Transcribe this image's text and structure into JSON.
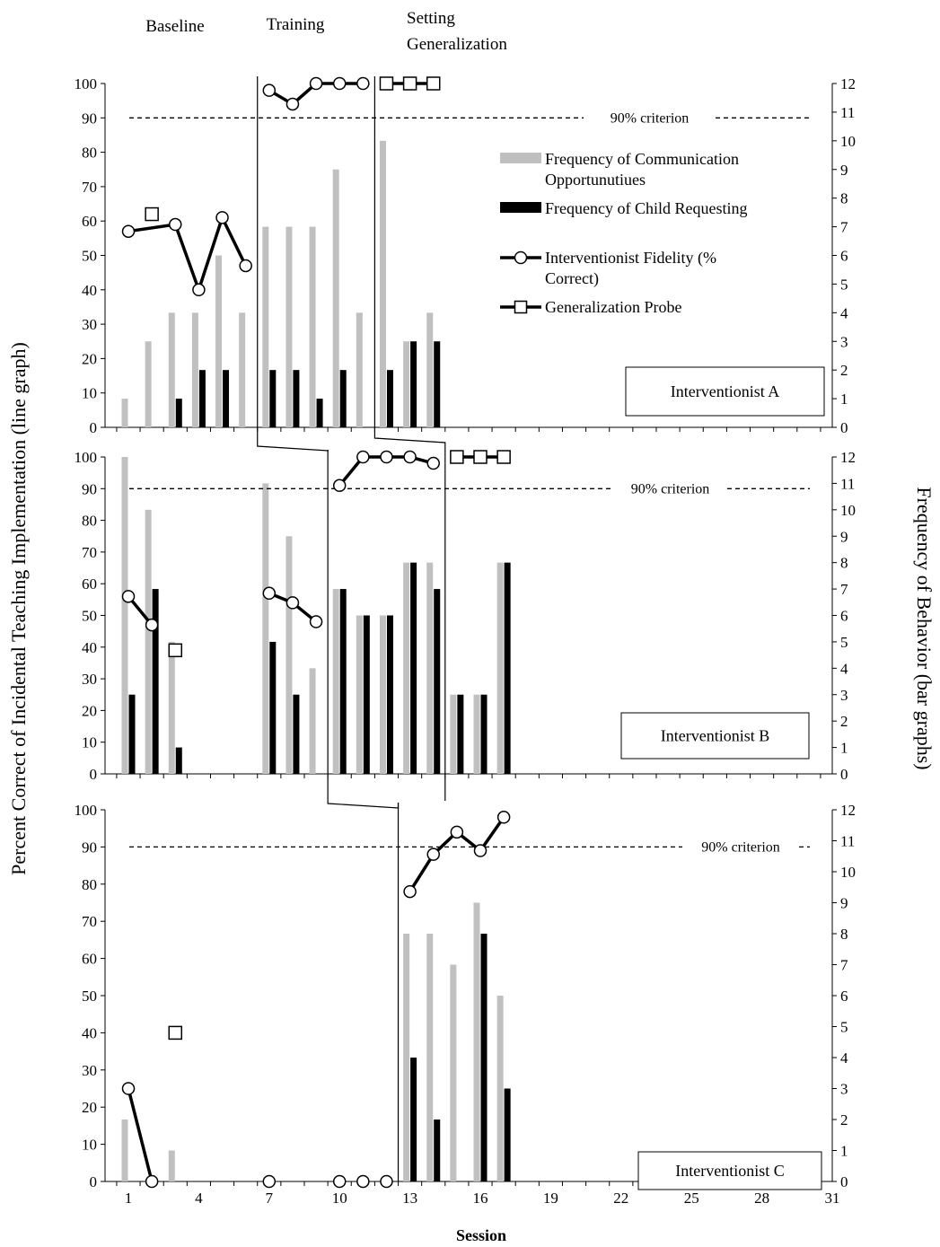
{
  "chart_data": {
    "type": "bar",
    "phase_labels": [
      "Baseline",
      "Training",
      "Setting",
      "Generalization"
    ],
    "ylabel_left": "Percent Correct of Incidental Teaching  Implementation  (line graph)",
    "ylabel_right": "Frequency  of Behavior  (bar graphs)",
    "xlabel": "Session",
    "x_ticks": [
      "1",
      "4",
      "7",
      "10",
      "13",
      "16",
      "19",
      "22",
      "25",
      "28",
      "31"
    ],
    "y_left_ticks": [
      "0",
      "10",
      "20",
      "30",
      "40",
      "50",
      "60",
      "70",
      "80",
      "90",
      "100"
    ],
    "y_right_ticks": [
      "0",
      "1",
      "2",
      "3",
      "4",
      "5",
      "6",
      "7",
      "8",
      "9",
      "10",
      "11",
      "12"
    ],
    "ylim_left": [
      0,
      100
    ],
    "ylim_right": [
      0,
      12
    ],
    "xlim": [
      1,
      31
    ],
    "criterion_value": 90,
    "criterion_label": "90% criterion",
    "legend": [
      {
        "label": "Frequency of Communication",
        "label2": "Opportunutiues",
        "marker": "gray-bar"
      },
      {
        "label": "Frequency of  Child Requesting",
        "label2": "",
        "marker": "black-bar"
      },
      {
        "label": "Interventionist Fidelity (%",
        "label2": "Correct)",
        "marker": "circle-line"
      },
      {
        "label": "Generalization Probe",
        "label2": "",
        "marker": "square-line"
      }
    ],
    "colors": {
      "opportunities": "#c0c0c0",
      "requesting": "#000000",
      "line": "#000000"
    },
    "panels": [
      {
        "name": "Interventionist A",
        "opportunities": [
          [
            1,
            1
          ],
          [
            2,
            3
          ],
          [
            3,
            4
          ],
          [
            4,
            4
          ],
          [
            5,
            6
          ],
          [
            6,
            4
          ],
          [
            7,
            7
          ],
          [
            8,
            7
          ],
          [
            9,
            7
          ],
          [
            10,
            9
          ],
          [
            11,
            4
          ],
          [
            12,
            10
          ],
          [
            13,
            3
          ],
          [
            14,
            4
          ]
        ],
        "requesting": [
          [
            3,
            1
          ],
          [
            4,
            2
          ],
          [
            5,
            2
          ],
          [
            7,
            2
          ],
          [
            8,
            2
          ],
          [
            9,
            1
          ],
          [
            10,
            2
          ],
          [
            12,
            2
          ],
          [
            13,
            3
          ],
          [
            14,
            3
          ]
        ],
        "fidelity_segments": [
          [
            [
              1,
              57
            ],
            [
              3,
              59
            ],
            [
              4,
              40
            ],
            [
              5,
              61
            ],
            [
              6,
              47
            ]
          ],
          [
            [
              7,
              98
            ],
            [
              8,
              94
            ],
            [
              9,
              100
            ],
            [
              10,
              100
            ],
            [
              11,
              100
            ]
          ]
        ],
        "probe_segments": [
          [
            [
              2,
              62
            ]
          ],
          [
            [
              12,
              100
            ],
            [
              13,
              100
            ],
            [
              14,
              100
            ]
          ]
        ],
        "phase_change_x": [
          6.5,
          11.5
        ],
        "criterion_label_x": 21.5
      },
      {
        "name": "Interventionist B",
        "opportunities": [
          [
            1,
            12
          ],
          [
            2,
            10
          ],
          [
            3,
            5
          ],
          [
            7,
            11
          ],
          [
            8,
            9
          ],
          [
            9,
            4
          ],
          [
            10,
            7
          ],
          [
            11,
            6
          ],
          [
            12,
            6
          ],
          [
            13,
            8
          ],
          [
            14,
            8
          ],
          [
            15,
            3
          ],
          [
            16,
            3
          ],
          [
            17,
            8
          ]
        ],
        "requesting": [
          [
            1,
            3
          ],
          [
            2,
            7
          ],
          [
            3,
            1
          ],
          [
            7,
            5
          ],
          [
            8,
            3
          ],
          [
            10,
            7
          ],
          [
            11,
            6
          ],
          [
            12,
            6
          ],
          [
            13,
            8
          ],
          [
            14,
            7
          ],
          [
            15,
            3
          ],
          [
            16,
            3
          ],
          [
            17,
            8
          ]
        ],
        "fidelity_segments": [
          [
            [
              1,
              56
            ],
            [
              2,
              47
            ]
          ],
          [
            [
              7,
              57
            ],
            [
              8,
              54
            ],
            [
              9,
              48
            ]
          ],
          [
            [
              10,
              91
            ],
            [
              11,
              100
            ],
            [
              12,
              100
            ],
            [
              13,
              100
            ],
            [
              14,
              98
            ]
          ]
        ],
        "probe_segments": [
          [
            [
              3,
              39
            ]
          ],
          [
            [
              15,
              100
            ],
            [
              16,
              100
            ],
            [
              17,
              100
            ]
          ]
        ],
        "phase_change_x": [
          9.5,
          14.5
        ],
        "criterion_label_x": 23
      },
      {
        "name": "Interventionist C",
        "opportunities": [
          [
            1,
            2
          ],
          [
            3,
            1
          ],
          [
            13,
            8
          ],
          [
            14,
            8
          ],
          [
            15,
            7
          ],
          [
            16,
            9
          ],
          [
            17,
            6
          ]
        ],
        "requesting": [
          [
            13,
            4
          ],
          [
            14,
            2
          ],
          [
            16,
            8
          ],
          [
            17,
            3
          ]
        ],
        "fidelity_segments": [
          [
            [
              1,
              25
            ],
            [
              2,
              0
            ]
          ],
          [
            [
              7,
              0
            ]
          ],
          [
            [
              10,
              0
            ]
          ],
          [
            [
              11,
              0
            ]
          ],
          [
            [
              12,
              0
            ]
          ],
          [
            [
              13,
              78
            ],
            [
              14,
              88
            ],
            [
              15,
              94
            ],
            [
              16,
              89
            ],
            [
              17,
              98
            ]
          ]
        ],
        "probe_segments": [
          [
            [
              3,
              40
            ]
          ]
        ],
        "phase_change_x": [
          12.5
        ],
        "criterion_label_x": 27
      }
    ]
  }
}
